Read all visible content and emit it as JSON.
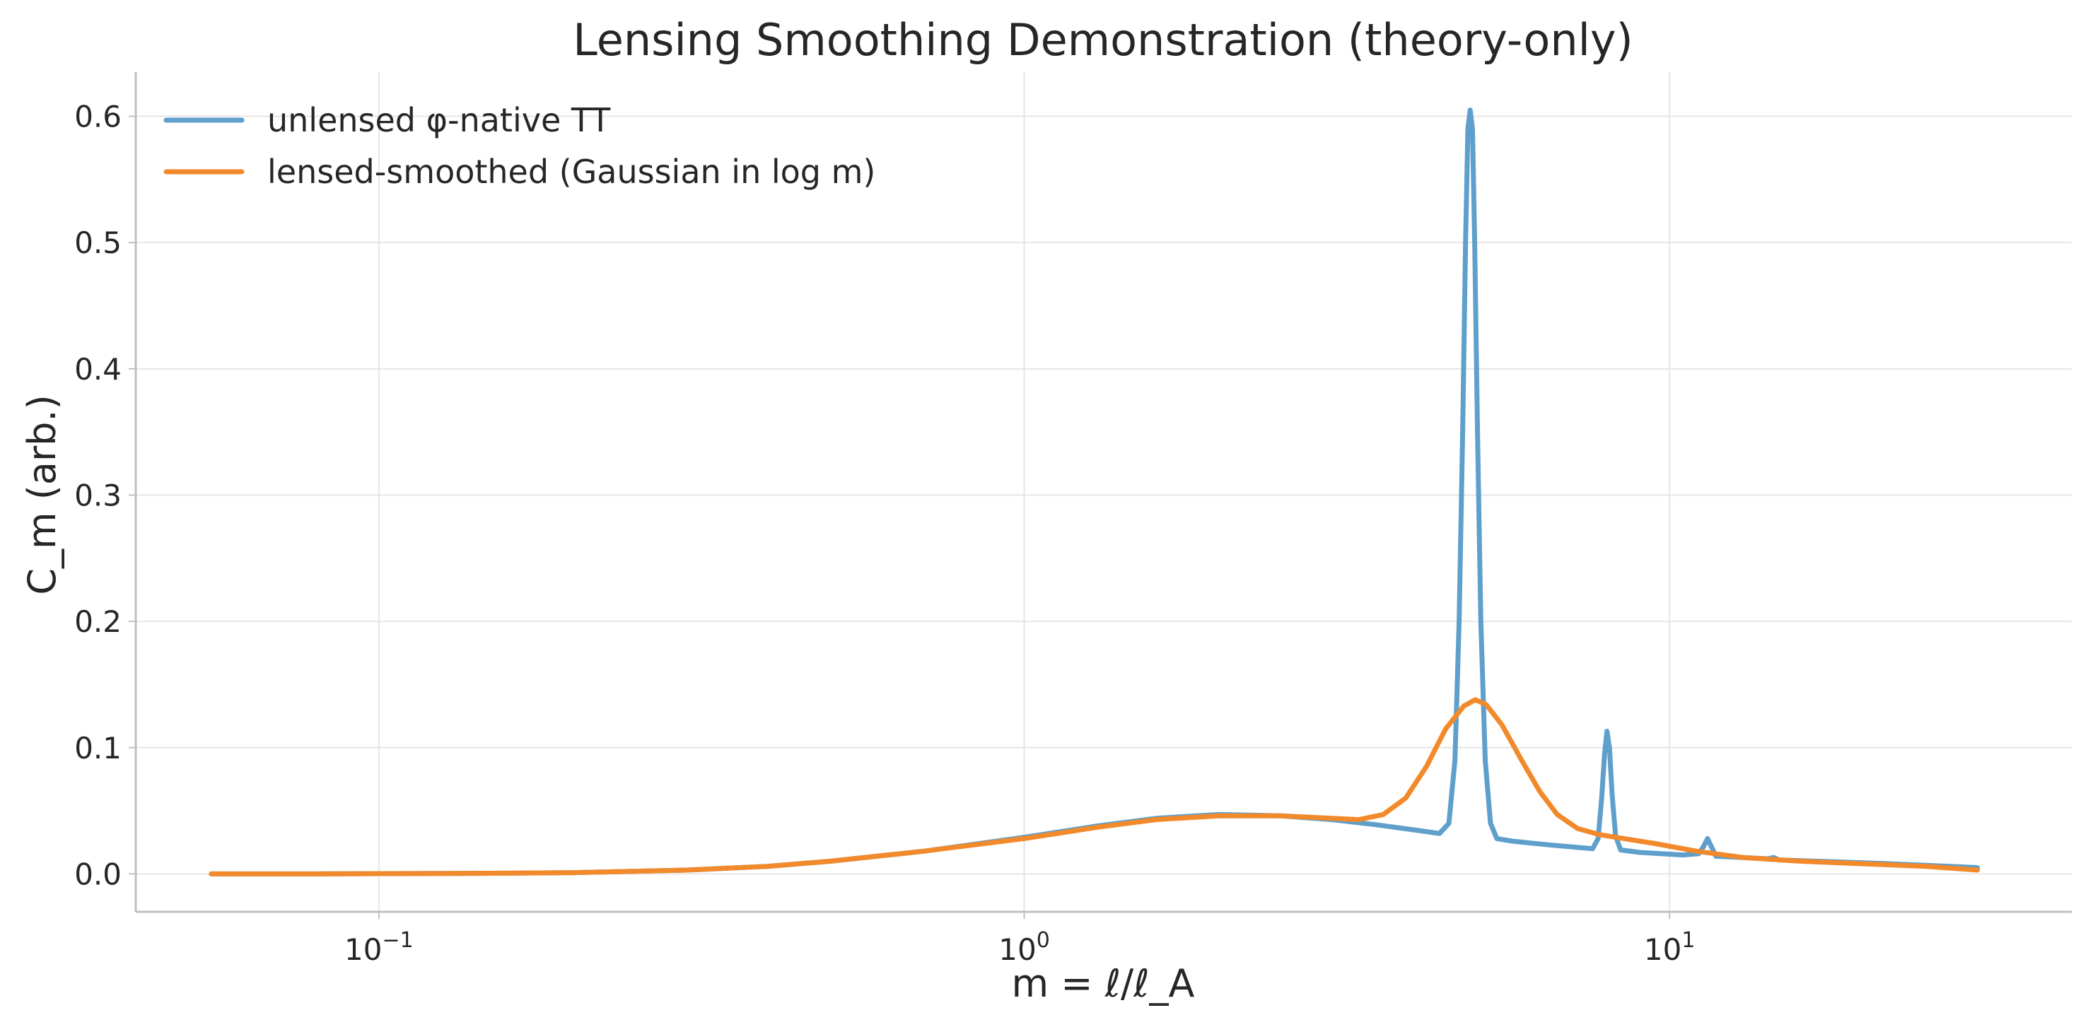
{
  "chart_data": {
    "type": "line",
    "title": "Lensing Smoothing Demonstration (theory-only)",
    "xlabel": "m = ℓ/ℓ_A",
    "ylabel": "C_m (arb.)",
    "xscale": "log",
    "xlim": [
      0.042,
      42
    ],
    "ylim": [
      -0.03,
      0.635
    ],
    "xticks": [
      {
        "value": 0.1,
        "base": "10",
        "exp": "−1"
      },
      {
        "value": 1,
        "base": "10",
        "exp": "0"
      },
      {
        "value": 10,
        "base": "10",
        "exp": "1"
      }
    ],
    "yticks": [
      {
        "value": 0.0,
        "label": "0.0"
      },
      {
        "value": 0.1,
        "label": "0.1"
      },
      {
        "value": 0.2,
        "label": "0.2"
      },
      {
        "value": 0.3,
        "label": "0.3"
      },
      {
        "value": 0.4,
        "label": "0.4"
      },
      {
        "value": 0.5,
        "label": "0.5"
      },
      {
        "value": 0.6,
        "label": "0.6"
      }
    ],
    "grid": true,
    "legend": "top-left",
    "series": [
      {
        "name": "unlensed φ-native TT",
        "color": "#5f9fcb",
        "points": [
          [
            0.055,
            0.0
          ],
          [
            0.08,
            0.0
          ],
          [
            0.1,
            0.0002
          ],
          [
            0.15,
            0.0005
          ],
          [
            0.2,
            0.001
          ],
          [
            0.3,
            0.003
          ],
          [
            0.4,
            0.006
          ],
          [
            0.5,
            0.01
          ],
          [
            0.7,
            0.018
          ],
          [
            1.0,
            0.029
          ],
          [
            1.3,
            0.038
          ],
          [
            1.6,
            0.044
          ],
          [
            2.0,
            0.047
          ],
          [
            2.5,
            0.046
          ],
          [
            3.0,
            0.043
          ],
          [
            3.5,
            0.039
          ],
          [
            4.0,
            0.035
          ],
          [
            4.4,
            0.032
          ],
          [
            4.55,
            0.04
          ],
          [
            4.65,
            0.09
          ],
          [
            4.72,
            0.2
          ],
          [
            4.78,
            0.35
          ],
          [
            4.83,
            0.5
          ],
          [
            4.87,
            0.59
          ],
          [
            4.91,
            0.605
          ],
          [
            4.95,
            0.59
          ],
          [
            4.99,
            0.5
          ],
          [
            5.04,
            0.35
          ],
          [
            5.1,
            0.2
          ],
          [
            5.18,
            0.09
          ],
          [
            5.28,
            0.04
          ],
          [
            5.4,
            0.028
          ],
          [
            5.7,
            0.026
          ],
          [
            6.5,
            0.023
          ],
          [
            7.2,
            0.021
          ],
          [
            7.6,
            0.02
          ],
          [
            7.75,
            0.028
          ],
          [
            7.85,
            0.06
          ],
          [
            7.93,
            0.095
          ],
          [
            8.0,
            0.113
          ],
          [
            8.07,
            0.1
          ],
          [
            8.15,
            0.062
          ],
          [
            8.25,
            0.03
          ],
          [
            8.4,
            0.019
          ],
          [
            9.0,
            0.017
          ],
          [
            10.5,
            0.015
          ],
          [
            11.1,
            0.016
          ],
          [
            11.3,
            0.022
          ],
          [
            11.45,
            0.028
          ],
          [
            11.6,
            0.022
          ],
          [
            11.8,
            0.014
          ],
          [
            13.0,
            0.013
          ],
          [
            14.2,
            0.012
          ],
          [
            14.5,
            0.013
          ],
          [
            14.8,
            0.011
          ],
          [
            17.0,
            0.01
          ],
          [
            22.0,
            0.008
          ],
          [
            30.0,
            0.005
          ]
        ]
      },
      {
        "name": "lensed-smoothed (Gaussian in log m)",
        "color": "#f28a2c",
        "points": [
          [
            0.055,
            0.0
          ],
          [
            0.08,
            0.0
          ],
          [
            0.1,
            0.0002
          ],
          [
            0.15,
            0.0005
          ],
          [
            0.2,
            0.001
          ],
          [
            0.3,
            0.003
          ],
          [
            0.4,
            0.006
          ],
          [
            0.5,
            0.01
          ],
          [
            0.7,
            0.018
          ],
          [
            1.0,
            0.028
          ],
          [
            1.3,
            0.037
          ],
          [
            1.6,
            0.043
          ],
          [
            2.0,
            0.046
          ],
          [
            2.5,
            0.046
          ],
          [
            3.0,
            0.044
          ],
          [
            3.3,
            0.043
          ],
          [
            3.6,
            0.047
          ],
          [
            3.9,
            0.06
          ],
          [
            4.2,
            0.085
          ],
          [
            4.5,
            0.115
          ],
          [
            4.8,
            0.133
          ],
          [
            5.0,
            0.138
          ],
          [
            5.2,
            0.134
          ],
          [
            5.5,
            0.118
          ],
          [
            5.9,
            0.09
          ],
          [
            6.3,
            0.065
          ],
          [
            6.7,
            0.047
          ],
          [
            7.2,
            0.036
          ],
          [
            7.8,
            0.031
          ],
          [
            8.5,
            0.028
          ],
          [
            9.5,
            0.024
          ],
          [
            11.0,
            0.018
          ],
          [
            13.0,
            0.013
          ],
          [
            16.0,
            0.01
          ],
          [
            20.0,
            0.008
          ],
          [
            25.0,
            0.006
          ],
          [
            30.0,
            0.003
          ]
        ]
      }
    ]
  }
}
